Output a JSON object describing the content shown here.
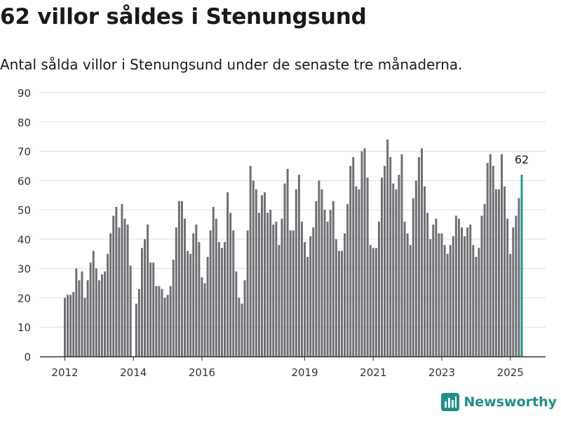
{
  "header": {
    "title": "62 villor såldes i Stenungsund",
    "subtitle": "Antal sålda villor i Stenungsund under de senaste tre månaderna."
  },
  "brand": {
    "name": "Newsworthy",
    "icon": "newsworthy-logo-icon"
  },
  "colors": {
    "bar": "#706f74",
    "highlight": "#1f9b93",
    "grid": "#dddddd",
    "axis": "#333333",
    "brand": "#1f8f8a"
  },
  "chart_data": {
    "type": "bar",
    "title": "62 villor såldes i Stenungsund",
    "subtitle": "Antal sålda villor i Stenungsund under de senaste tre månaderna.",
    "xlabel": "",
    "ylabel": "",
    "ylim": [
      0,
      90
    ],
    "yticks": [
      0,
      10,
      20,
      30,
      40,
      50,
      60,
      70,
      80,
      90
    ],
    "grid": true,
    "x_ticks": [
      {
        "label": "2012",
        "index": 0
      },
      {
        "label": "2014",
        "index": 24
      },
      {
        "label": "2016",
        "index": 48
      },
      {
        "label": "2019",
        "index": 84
      },
      {
        "label": "2021",
        "index": 108
      },
      {
        "label": "2023",
        "index": 132
      },
      {
        "label": "2025",
        "index": 156
      }
    ],
    "values": [
      20,
      21,
      21,
      22,
      30,
      26,
      29,
      20,
      26,
      32,
      36,
      30,
      26,
      28,
      29,
      35,
      42,
      48,
      51,
      44,
      52,
      47,
      45,
      31,
      null,
      18,
      23,
      37,
      40,
      45,
      32,
      32,
      24,
      24,
      23,
      20,
      21,
      24,
      33,
      44,
      53,
      53,
      47,
      36,
      35,
      42,
      45,
      39,
      27,
      25,
      34,
      43,
      51,
      47,
      39,
      37,
      39,
      56,
      49,
      43,
      29,
      20,
      18,
      26,
      43,
      65,
      60,
      57,
      49,
      55,
      56,
      49,
      50,
      45,
      46,
      38,
      47,
      59,
      64,
      43,
      43,
      57,
      62,
      46,
      39,
      34,
      41,
      44,
      53,
      60,
      57,
      50,
      46,
      50,
      53,
      40,
      36,
      36,
      42,
      52,
      65,
      68,
      58,
      57,
      70,
      71,
      61,
      38,
      37,
      37,
      46,
      61,
      65,
      74,
      68,
      59,
      57,
      62,
      69,
      46,
      42,
      38,
      54,
      60,
      68,
      71,
      58,
      49,
      40,
      45,
      47,
      42,
      42,
      38,
      35,
      38,
      41,
      48,
      47,
      44,
      41,
      44,
      45,
      38,
      34,
      37,
      48,
      52,
      66,
      69,
      65,
      57,
      57,
      69,
      58,
      47,
      35,
      44,
      48,
      54,
      62
    ],
    "highlight_last": true,
    "annotations": [
      {
        "text": "62",
        "index": 160
      }
    ]
  }
}
